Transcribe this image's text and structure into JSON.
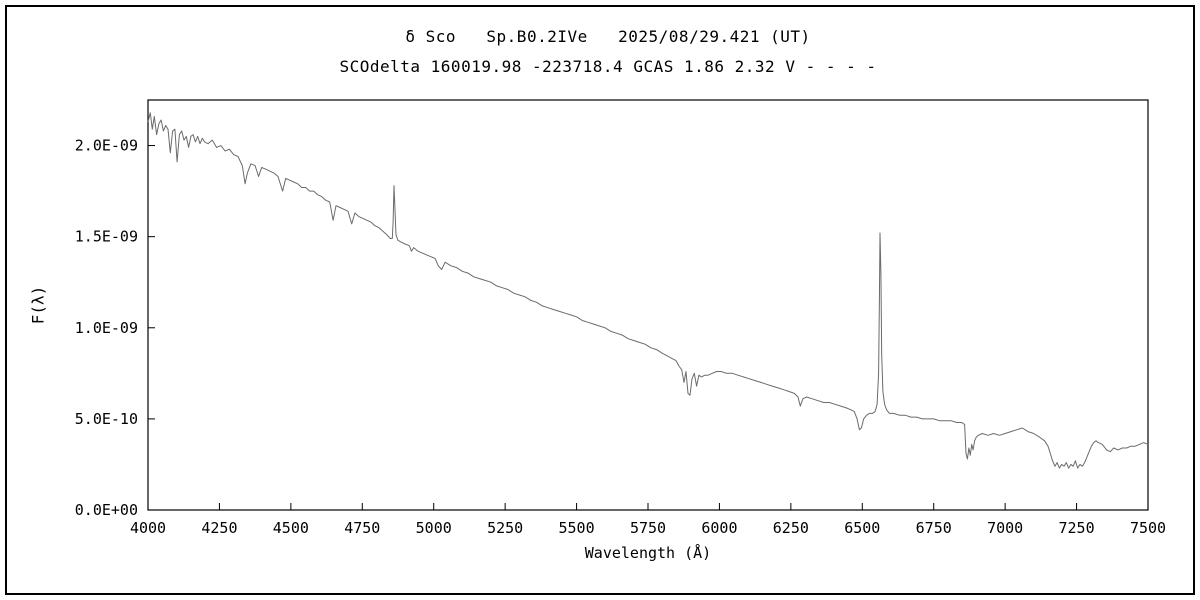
{
  "chart_data": {
    "type": "line",
    "title": "δ Sco   Sp.B0.2IVe   2025/08/29.421 (UT)",
    "subtitle": "SCOdelta 160019.98 -223718.4 GCAS 1.86 2.32 V - - - -",
    "xlabel": "Wavelength (Å)",
    "ylabel": "F(λ)",
    "xlim": [
      4000,
      7500
    ],
    "ylim": [
      0,
      2.25e-09
    ],
    "grid": false,
    "legend": "none",
    "frame_color": "#000000",
    "line_color": "#6b6b6b",
    "x_ticks": [
      4000,
      4250,
      4500,
      4750,
      5000,
      5250,
      5500,
      5750,
      6000,
      6250,
      6500,
      6750,
      7000,
      7250,
      7500
    ],
    "y_ticks": [
      {
        "value": 0,
        "label": "0.0E+00"
      },
      {
        "value": 5e-10,
        "label": "5.0E-10"
      },
      {
        "value": 1e-09,
        "label": "1.0E-09"
      },
      {
        "value": 1.5e-09,
        "label": "1.5E-09"
      },
      {
        "value": 2e-09,
        "label": "2.0E-09"
      }
    ],
    "values_scale": 1e-10,
    "series": [
      {
        "name": "delta-sco-flux-spectrum",
        "points": [
          [
            4000,
            21.3
          ],
          [
            4008,
            21.8
          ],
          [
            4015,
            20.9
          ],
          [
            4022,
            21.6
          ],
          [
            4030,
            20.6
          ],
          [
            4038,
            21.2
          ],
          [
            4046,
            21.4
          ],
          [
            4054,
            20.8
          ],
          [
            4062,
            21.1
          ],
          [
            4070,
            20.9
          ],
          [
            4078,
            19.6
          ],
          [
            4086,
            20.8
          ],
          [
            4094,
            20.9
          ],
          [
            4102,
            19.1
          ],
          [
            4110,
            20.6
          ],
          [
            4118,
            20.8
          ],
          [
            4126,
            20.3
          ],
          [
            4134,
            20.5
          ],
          [
            4142,
            19.9
          ],
          [
            4150,
            20.5
          ],
          [
            4158,
            20.6
          ],
          [
            4166,
            20.2
          ],
          [
            4174,
            20.5
          ],
          [
            4182,
            20.1
          ],
          [
            4190,
            20.4
          ],
          [
            4198,
            20.2
          ],
          [
            4210,
            20.1
          ],
          [
            4225,
            20.3
          ],
          [
            4240,
            19.9
          ],
          [
            4255,
            20.0
          ],
          [
            4270,
            19.7
          ],
          [
            4285,
            19.8
          ],
          [
            4300,
            19.5
          ],
          [
            4315,
            19.4
          ],
          [
            4330,
            18.9
          ],
          [
            4340,
            17.9
          ],
          [
            4348,
            18.5
          ],
          [
            4360,
            19.0
          ],
          [
            4375,
            18.9
          ],
          [
            4387,
            18.3
          ],
          [
            4398,
            18.8
          ],
          [
            4412,
            18.7
          ],
          [
            4426,
            18.6
          ],
          [
            4440,
            18.5
          ],
          [
            4455,
            18.3
          ],
          [
            4471,
            17.5
          ],
          [
            4482,
            18.2
          ],
          [
            4496,
            18.1
          ],
          [
            4510,
            18.0
          ],
          [
            4524,
            17.9
          ],
          [
            4538,
            17.7
          ],
          [
            4552,
            17.7
          ],
          [
            4566,
            17.5
          ],
          [
            4580,
            17.5
          ],
          [
            4594,
            17.3
          ],
          [
            4608,
            17.2
          ],
          [
            4622,
            17.0
          ],
          [
            4636,
            16.9
          ],
          [
            4648,
            15.9
          ],
          [
            4658,
            16.7
          ],
          [
            4672,
            16.6
          ],
          [
            4686,
            16.5
          ],
          [
            4700,
            16.4
          ],
          [
            4713,
            15.7
          ],
          [
            4724,
            16.3
          ],
          [
            4738,
            16.1
          ],
          [
            4752,
            16.0
          ],
          [
            4766,
            15.9
          ],
          [
            4780,
            15.8
          ],
          [
            4794,
            15.6
          ],
          [
            4808,
            15.5
          ],
          [
            4822,
            15.3
          ],
          [
            4836,
            15.1
          ],
          [
            4848,
            14.9
          ],
          [
            4855,
            14.9
          ],
          [
            4858,
            15.8
          ],
          [
            4861,
            17.8
          ],
          [
            4864,
            16.6
          ],
          [
            4868,
            15.1
          ],
          [
            4875,
            14.8
          ],
          [
            4886,
            14.7
          ],
          [
            4900,
            14.6
          ],
          [
            4915,
            14.5
          ],
          [
            4922,
            14.2
          ],
          [
            4930,
            14.4
          ],
          [
            4945,
            14.2
          ],
          [
            4960,
            14.1
          ],
          [
            4975,
            14.0
          ],
          [
            4990,
            13.9
          ],
          [
            5005,
            13.8
          ],
          [
            5016,
            13.4
          ],
          [
            5028,
            13.2
          ],
          [
            5040,
            13.6
          ],
          [
            5060,
            13.4
          ],
          [
            5080,
            13.3
          ],
          [
            5100,
            13.1
          ],
          [
            5120,
            13.0
          ],
          [
            5140,
            12.8
          ],
          [
            5160,
            12.7
          ],
          [
            5180,
            12.6
          ],
          [
            5200,
            12.5
          ],
          [
            5220,
            12.3
          ],
          [
            5240,
            12.2
          ],
          [
            5260,
            12.1
          ],
          [
            5280,
            11.9
          ],
          [
            5300,
            11.8
          ],
          [
            5320,
            11.7
          ],
          [
            5340,
            11.5
          ],
          [
            5360,
            11.4
          ],
          [
            5380,
            11.2
          ],
          [
            5400,
            11.1
          ],
          [
            5420,
            11.0
          ],
          [
            5440,
            10.9
          ],
          [
            5460,
            10.8
          ],
          [
            5480,
            10.7
          ],
          [
            5500,
            10.6
          ],
          [
            5520,
            10.4
          ],
          [
            5540,
            10.3
          ],
          [
            5560,
            10.2
          ],
          [
            5580,
            10.1
          ],
          [
            5600,
            10.0
          ],
          [
            5620,
            9.8
          ],
          [
            5640,
            9.7
          ],
          [
            5660,
            9.6
          ],
          [
            5680,
            9.4
          ],
          [
            5700,
            9.3
          ],
          [
            5720,
            9.2
          ],
          [
            5740,
            9.1
          ],
          [
            5760,
            8.9
          ],
          [
            5780,
            8.8
          ],
          [
            5800,
            8.6
          ],
          [
            5812,
            8.5
          ],
          [
            5824,
            8.4
          ],
          [
            5836,
            8.3
          ],
          [
            5848,
            8.2
          ],
          [
            5858,
            7.9
          ],
          [
            5868,
            7.7
          ],
          [
            5876,
            7.0
          ],
          [
            5883,
            7.6
          ],
          [
            5890,
            6.4
          ],
          [
            5897,
            6.3
          ],
          [
            5904,
            7.2
          ],
          [
            5912,
            7.5
          ],
          [
            5920,
            6.8
          ],
          [
            5928,
            7.4
          ],
          [
            5938,
            7.3
          ],
          [
            5948,
            7.4
          ],
          [
            5960,
            7.4
          ],
          [
            5975,
            7.5
          ],
          [
            5990,
            7.6
          ],
          [
            6005,
            7.6
          ],
          [
            6025,
            7.5
          ],
          [
            6045,
            7.5
          ],
          [
            6065,
            7.4
          ],
          [
            6085,
            7.3
          ],
          [
            6105,
            7.2
          ],
          [
            6125,
            7.1
          ],
          [
            6145,
            7.0
          ],
          [
            6165,
            6.9
          ],
          [
            6185,
            6.8
          ],
          [
            6205,
            6.7
          ],
          [
            6225,
            6.6
          ],
          [
            6245,
            6.5
          ],
          [
            6262,
            6.4
          ],
          [
            6275,
            6.2
          ],
          [
            6283,
            5.7
          ],
          [
            6292,
            6.1
          ],
          [
            6305,
            6.2
          ],
          [
            6325,
            6.1
          ],
          [
            6345,
            6.0
          ],
          [
            6365,
            5.9
          ],
          [
            6385,
            5.9
          ],
          [
            6405,
            5.8
          ],
          [
            6425,
            5.7
          ],
          [
            6445,
            5.6
          ],
          [
            6460,
            5.5
          ],
          [
            6472,
            5.4
          ],
          [
            6482,
            5.0
          ],
          [
            6490,
            4.4
          ],
          [
            6497,
            4.5
          ],
          [
            6505,
            5.0
          ],
          [
            6515,
            5.2
          ],
          [
            6525,
            5.3
          ],
          [
            6535,
            5.3
          ],
          [
            6545,
            5.4
          ],
          [
            6552,
            5.8
          ],
          [
            6557,
            7.5
          ],
          [
            6560,
            11.5
          ],
          [
            6562,
            15.2
          ],
          [
            6565,
            13.0
          ],
          [
            6568,
            8.5
          ],
          [
            6572,
            6.5
          ],
          [
            6578,
            5.8
          ],
          [
            6585,
            5.5
          ],
          [
            6595,
            5.3
          ],
          [
            6610,
            5.3
          ],
          [
            6630,
            5.2
          ],
          [
            6650,
            5.2
          ],
          [
            6670,
            5.1
          ],
          [
            6690,
            5.1
          ],
          [
            6710,
            5.0
          ],
          [
            6730,
            5.0
          ],
          [
            6750,
            5.0
          ],
          [
            6770,
            4.9
          ],
          [
            6790,
            4.9
          ],
          [
            6810,
            4.9
          ],
          [
            6830,
            4.8
          ],
          [
            6848,
            4.8
          ],
          [
            6858,
            4.7
          ],
          [
            6863,
            3.1
          ],
          [
            6868,
            2.8
          ],
          [
            6873,
            3.4
          ],
          [
            6878,
            3.0
          ],
          [
            6883,
            3.6
          ],
          [
            6888,
            3.3
          ],
          [
            6893,
            3.8
          ],
          [
            6899,
            4.0
          ],
          [
            6906,
            4.1
          ],
          [
            6920,
            4.2
          ],
          [
            6940,
            4.1
          ],
          [
            6960,
            4.2
          ],
          [
            6980,
            4.1
          ],
          [
            7000,
            4.2
          ],
          [
            7020,
            4.3
          ],
          [
            7040,
            4.4
          ],
          [
            7060,
            4.5
          ],
          [
            7080,
            4.3
          ],
          [
            7100,
            4.2
          ],
          [
            7120,
            4.0
          ],
          [
            7138,
            3.8
          ],
          [
            7150,
            3.5
          ],
          [
            7158,
            3.1
          ],
          [
            7166,
            2.7
          ],
          [
            7174,
            2.4
          ],
          [
            7182,
            2.6
          ],
          [
            7190,
            2.3
          ],
          [
            7198,
            2.5
          ],
          [
            7206,
            2.4
          ],
          [
            7214,
            2.6
          ],
          [
            7222,
            2.3
          ],
          [
            7230,
            2.5
          ],
          [
            7238,
            2.4
          ],
          [
            7246,
            2.7
          ],
          [
            7254,
            2.3
          ],
          [
            7262,
            2.5
          ],
          [
            7270,
            2.4
          ],
          [
            7278,
            2.6
          ],
          [
            7286,
            2.9
          ],
          [
            7294,
            3.2
          ],
          [
            7302,
            3.5
          ],
          [
            7310,
            3.7
          ],
          [
            7318,
            3.8
          ],
          [
            7326,
            3.7
          ],
          [
            7340,
            3.6
          ],
          [
            7355,
            3.3
          ],
          [
            7368,
            3.2
          ],
          [
            7380,
            3.4
          ],
          [
            7395,
            3.3
          ],
          [
            7410,
            3.4
          ],
          [
            7425,
            3.4
          ],
          [
            7440,
            3.5
          ],
          [
            7455,
            3.5
          ],
          [
            7470,
            3.6
          ],
          [
            7485,
            3.7
          ],
          [
            7500,
            3.6
          ]
        ]
      }
    ]
  }
}
